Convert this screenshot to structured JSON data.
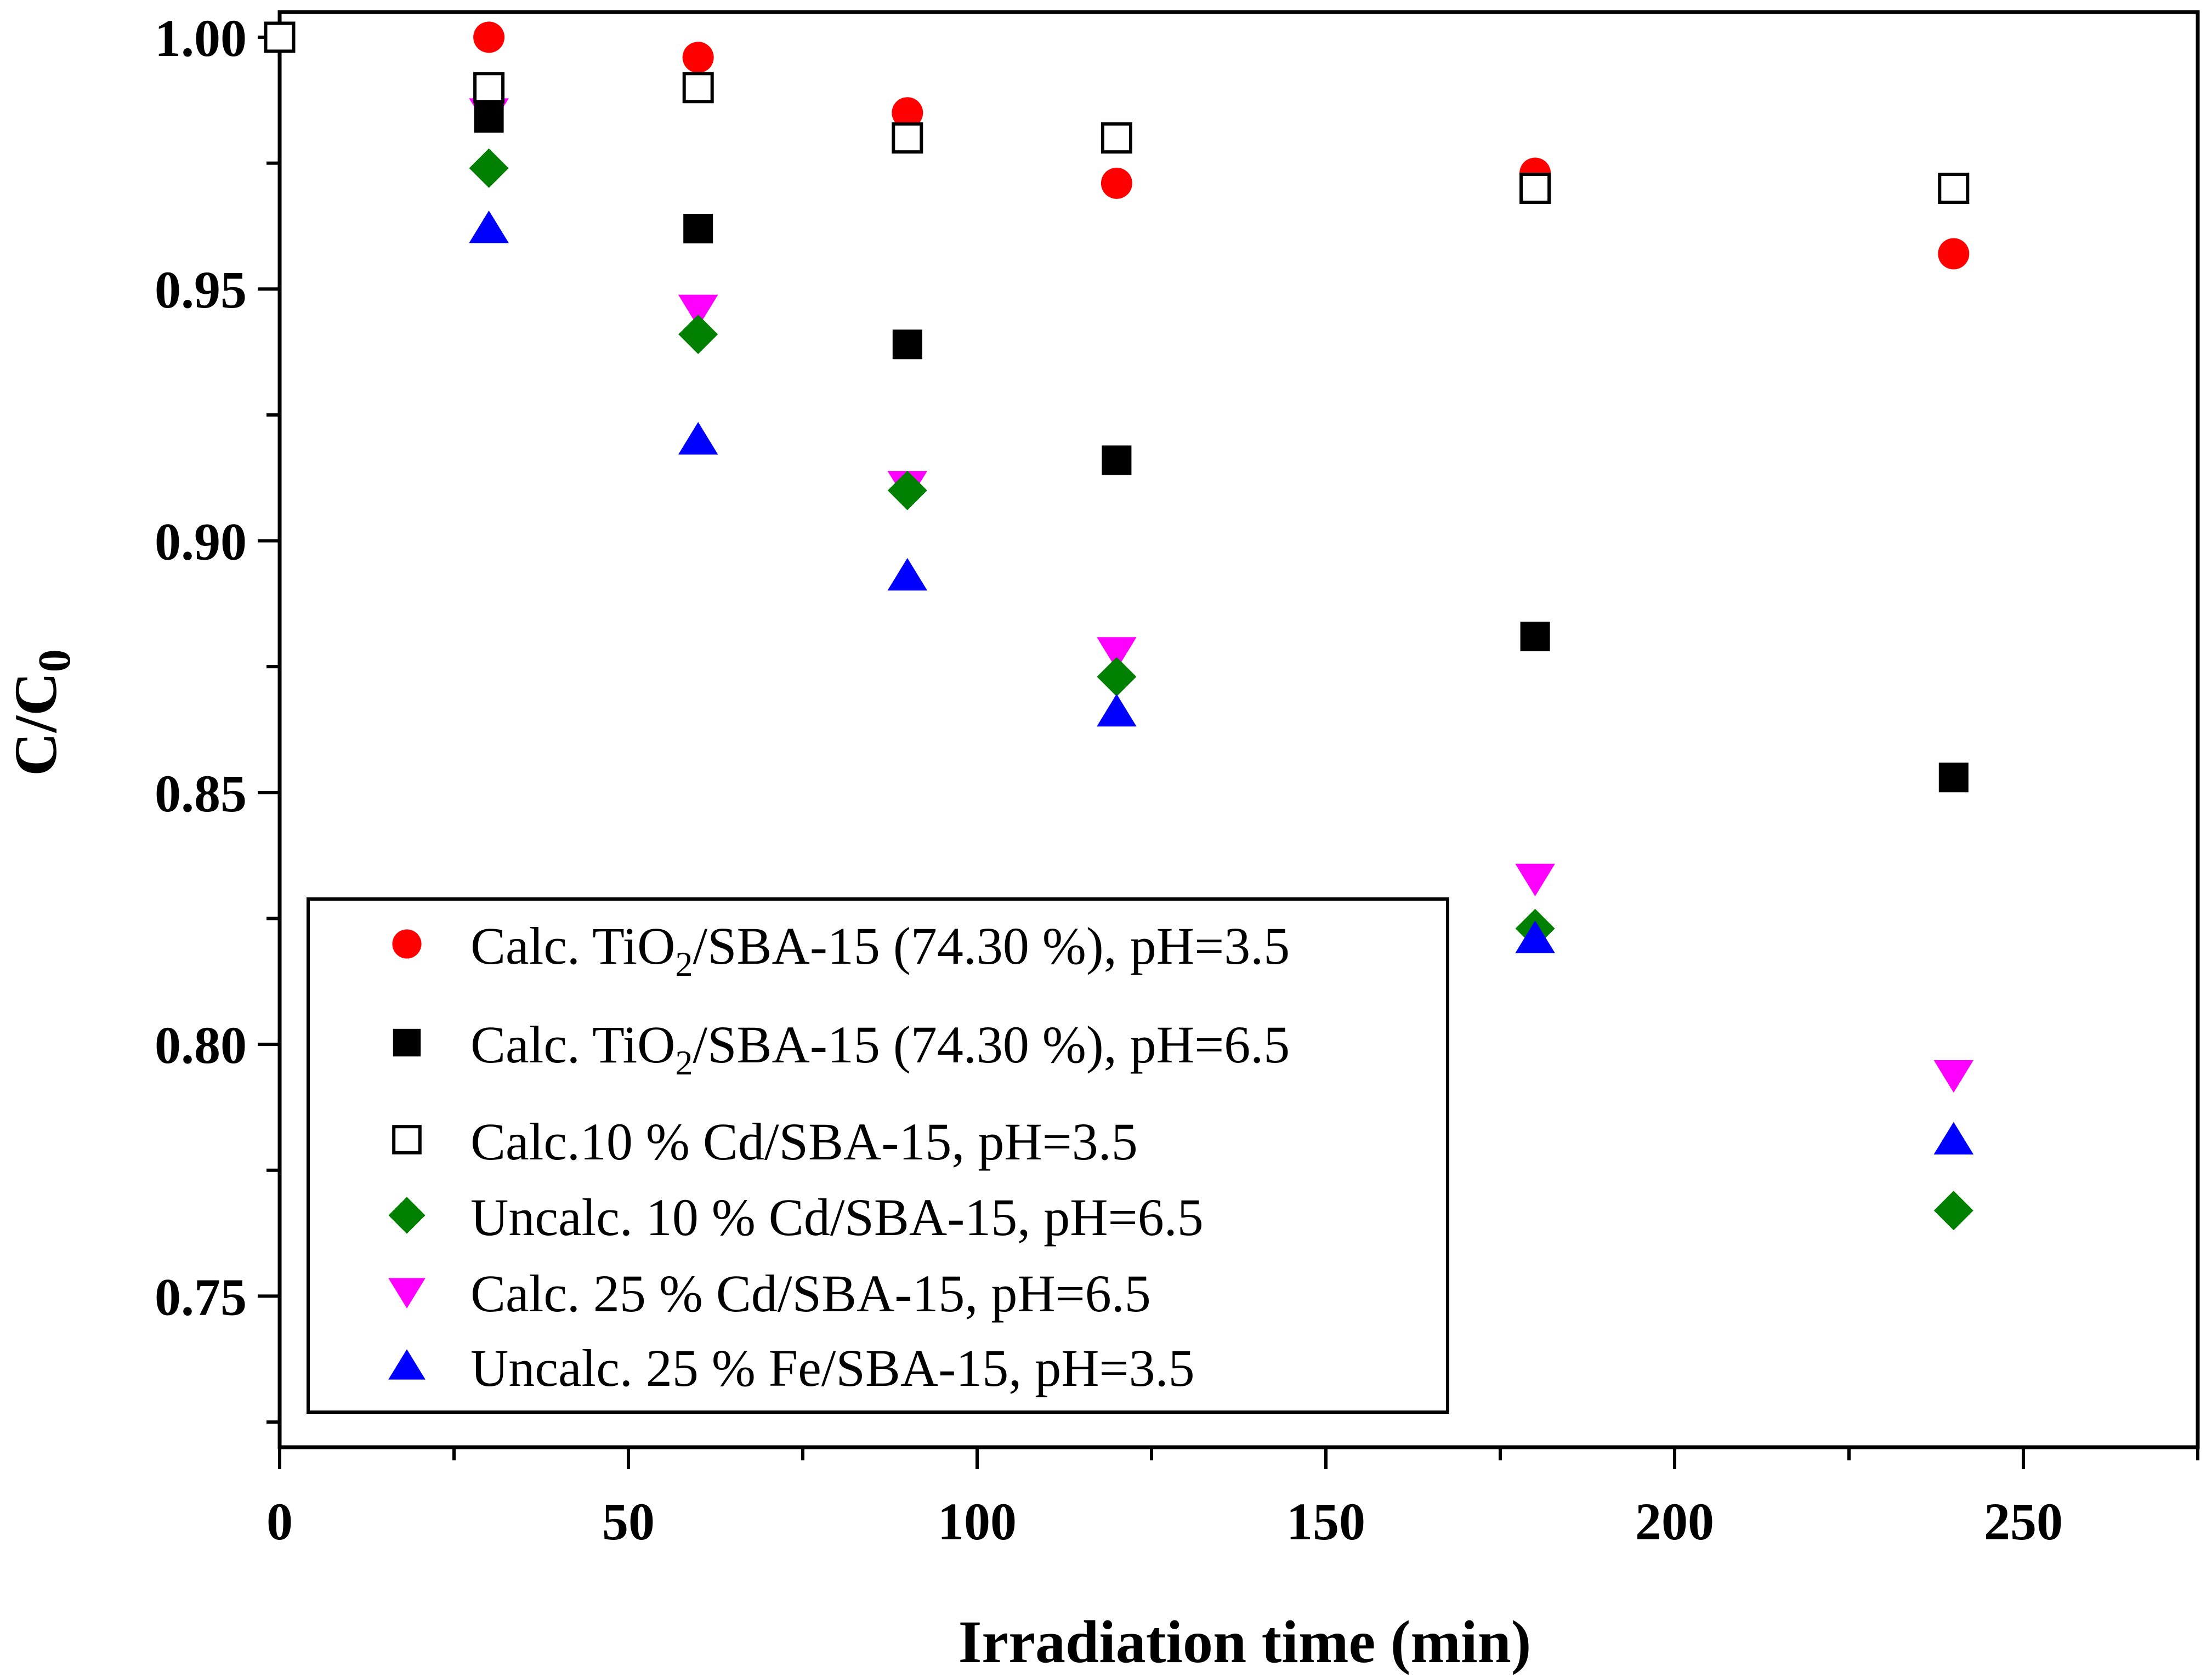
{
  "chart_data": {
    "type": "scatter",
    "title": "",
    "xlabel": "Irradiation time (min)",
    "ylabel": {
      "main": "C/C",
      "subscript": "0"
    },
    "xlim": [
      0,
      275
    ],
    "ylim": [
      0.72,
      1.005
    ],
    "grid": false,
    "legend_position": "bottom-left",
    "x_ticks": [
      {
        "value": 0,
        "label": "0"
      },
      {
        "value": 50,
        "label": "50"
      },
      {
        "value": 100,
        "label": "100"
      },
      {
        "value": 150,
        "label": "150"
      },
      {
        "value": 200,
        "label": "200"
      },
      {
        "value": 250,
        "label": "250"
      }
    ],
    "x_minor_ticks": [
      25,
      75,
      125,
      175,
      225,
      275
    ],
    "y_ticks": [
      {
        "value": 1.0,
        "label": "1.00"
      },
      {
        "value": 0.95,
        "label": "0.95"
      },
      {
        "value": 0.9,
        "label": "0.90"
      },
      {
        "value": 0.85,
        "label": "0.85"
      },
      {
        "value": 0.8,
        "label": "0.80"
      },
      {
        "value": 0.75,
        "label": "0.75"
      }
    ],
    "series": [
      {
        "id": "calc-tio2-ph35",
        "legend": {
          "pre": "Calc. TiO",
          "sub": "2",
          "post": "/SBA-15 (74.30 %), pH=3.5"
        },
        "marker": "circle",
        "color": "#ff0000",
        "fill": "#ff0000",
        "x": [
          30,
          60,
          90,
          120,
          180,
          240
        ],
        "y": [
          1.0,
          0.996,
          0.985,
          0.971,
          0.973,
          0.957
        ]
      },
      {
        "id": "calc-tio2-ph65",
        "legend": {
          "pre": "Calc. TiO",
          "sub": "2",
          "post": "/SBA-15 (74.30 %), pH=6.5"
        },
        "marker": "square",
        "color": "#000000",
        "fill": "#000000",
        "x": [
          30,
          60,
          90,
          120,
          180,
          240
        ],
        "y": [
          0.984,
          0.962,
          0.939,
          0.916,
          0.881,
          0.853
        ]
      },
      {
        "id": "calc-cd10-ph35",
        "legend": {
          "pre": "Calc.10 % Cd/SBA-15, pH=3.5",
          "sub": "",
          "post": ""
        },
        "marker": "square-open",
        "color": "#000000",
        "fill": "#ffffff",
        "x": [
          0,
          30,
          60,
          90,
          120,
          180,
          240
        ],
        "y": [
          1.0,
          0.99,
          0.99,
          0.98,
          0.98,
          0.97,
          0.97
        ]
      },
      {
        "id": "uncalc-cd10-ph65",
        "legend": {
          "pre": "Uncalc. 10 % Cd/SBA-15, pH=6.5",
          "sub": "",
          "post": ""
        },
        "marker": "diamond",
        "color": "#008000",
        "fill": "#008000",
        "x": [
          30,
          60,
          90,
          120,
          180,
          240
        ],
        "y": [
          0.974,
          0.941,
          0.91,
          0.873,
          0.823,
          0.767
        ]
      },
      {
        "id": "calc-cd25-ph65",
        "legend": {
          "pre": "Calc. 25 % Cd/SBA-15, pH=6.5",
          "sub": "",
          "post": ""
        },
        "marker": "triangle-down",
        "color": "#ff00ff",
        "fill": "#ff00ff",
        "x": [
          30,
          60,
          90,
          120,
          180,
          240
        ],
        "y": [
          0.985,
          0.946,
          0.911,
          0.878,
          0.833,
          0.794
        ]
      },
      {
        "id": "uncalc-fe25-ph35",
        "legend": {
          "pre": "Uncalc. 25 % Fe/SBA-15, pH=3.5",
          "sub": "",
          "post": ""
        },
        "marker": "triangle-up",
        "color": "#0000ff",
        "fill": "#0000ff",
        "x": [
          30,
          60,
          90,
          120,
          180,
          240
        ],
        "y": [
          0.962,
          0.92,
          0.893,
          0.866,
          0.821,
          0.781
        ]
      }
    ]
  }
}
